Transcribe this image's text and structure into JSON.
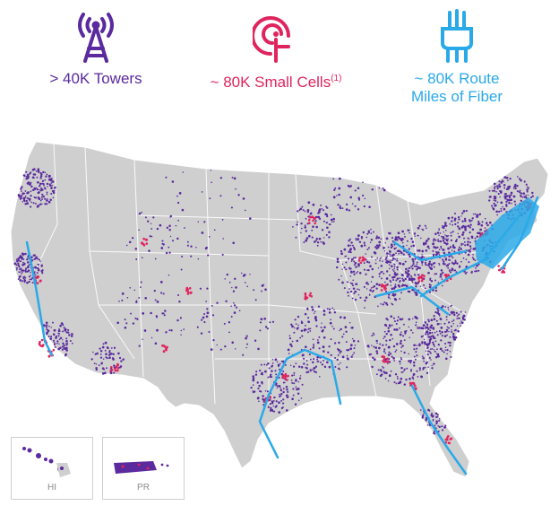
{
  "colors": {
    "towers": "#5a2a9e",
    "small_cells": "#e0245e",
    "fiber": "#2aa9e8",
    "land": "#cfcfcf",
    "border": "#ffffff"
  },
  "stats": [
    {
      "id": "towers",
      "icon": "tower-icon",
      "line1": "> 40K Towers",
      "line2": ""
    },
    {
      "id": "small_cells",
      "icon": "small-cell-icon",
      "line1": "~ 80K Small Cells",
      "superscript": "(1)",
      "line2": ""
    },
    {
      "id": "fiber",
      "icon": "fiber-icon",
      "line1": "~ 80K Route",
      "line2": "Miles of Fiber"
    }
  ],
  "insets": {
    "hawaii": "HI",
    "puerto_rico": "PR"
  }
}
